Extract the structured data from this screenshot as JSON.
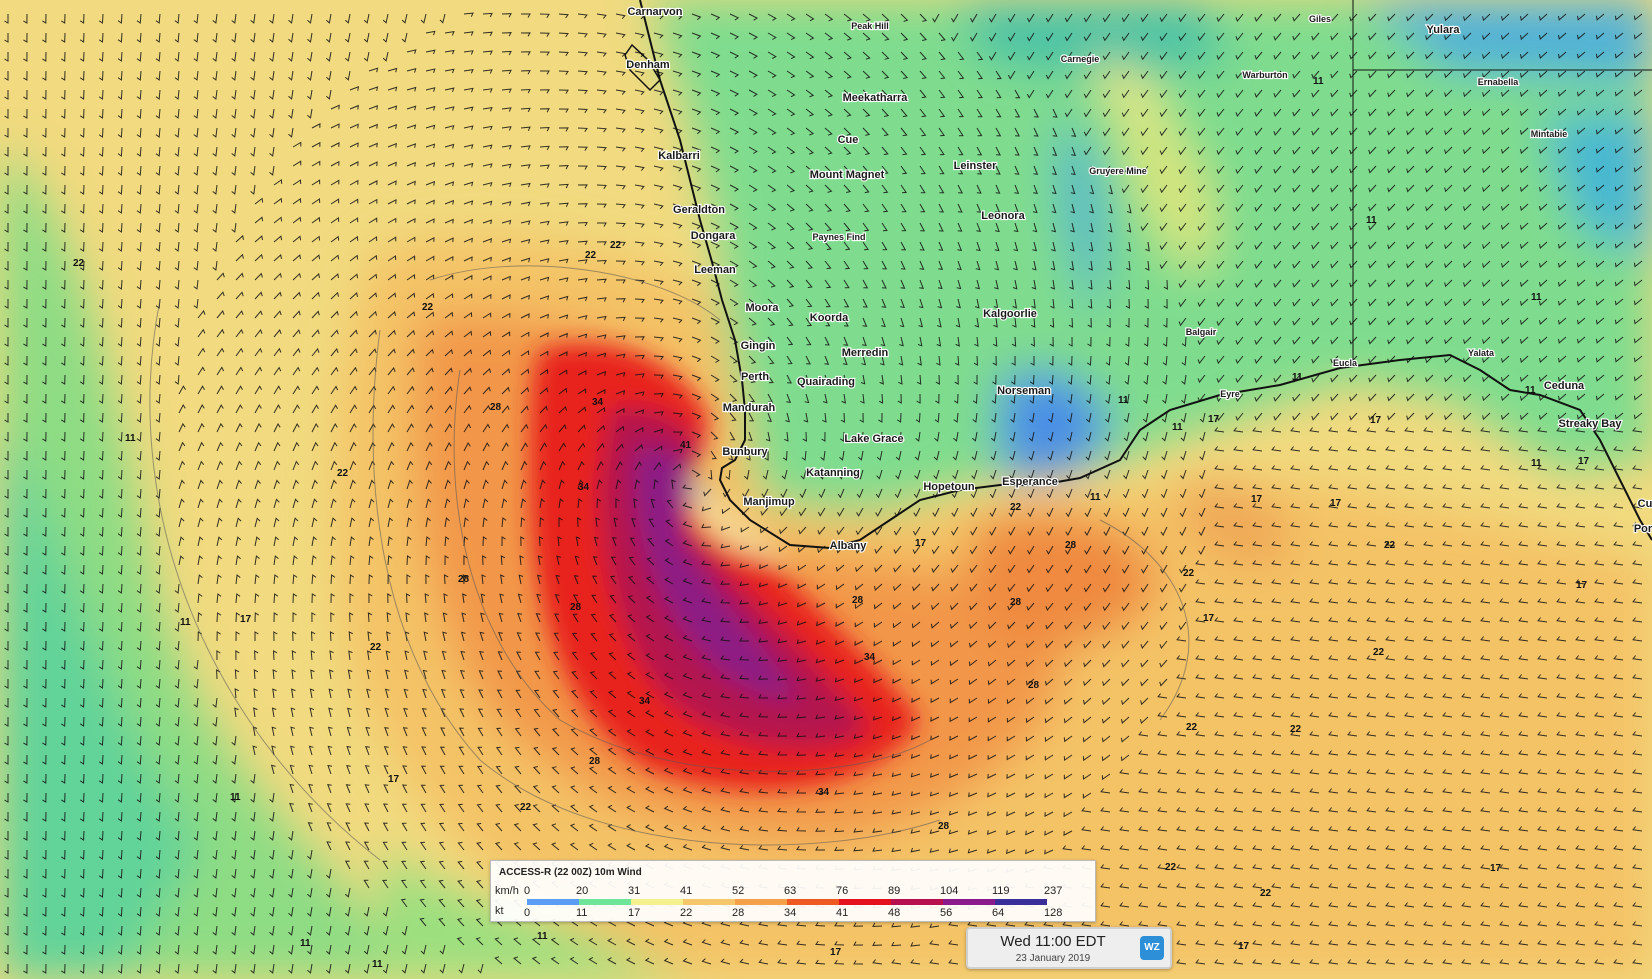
{
  "places": [
    {
      "id": "carnarvon",
      "name": "Carnarvon"
    },
    {
      "id": "denham",
      "name": "Denham"
    },
    {
      "id": "peak-hill",
      "name": "Peak Hill"
    },
    {
      "id": "giles",
      "name": "Giles"
    },
    {
      "id": "yulara",
      "name": "Yulara"
    },
    {
      "id": "carnegie",
      "name": "Carnegie"
    },
    {
      "id": "warburton",
      "name": "Warburton"
    },
    {
      "id": "ernabella",
      "name": "Ernabella"
    },
    {
      "id": "meekatharra",
      "name": "Meekatharra"
    },
    {
      "id": "mintabie",
      "name": "Mintabie"
    },
    {
      "id": "kalbarri",
      "name": "Kalbarri"
    },
    {
      "id": "cue",
      "name": "Cue"
    },
    {
      "id": "leinster",
      "name": "Leinster"
    },
    {
      "id": "gruyere-mine",
      "name": "Gruyere Mine"
    },
    {
      "id": "mount-magnet",
      "name": "Mount Magnet"
    },
    {
      "id": "geraldton",
      "name": "Geraldton"
    },
    {
      "id": "leonora",
      "name": "Leonora"
    },
    {
      "id": "dongara",
      "name": "Dongara"
    },
    {
      "id": "paynes-find",
      "name": "Paynes Find"
    },
    {
      "id": "leeman",
      "name": "Leeman"
    },
    {
      "id": "moora",
      "name": "Moora"
    },
    {
      "id": "koorda",
      "name": "Koorda"
    },
    {
      "id": "kalgoorlie",
      "name": "Kalgoorlie"
    },
    {
      "id": "balgair",
      "name": "Balgair"
    },
    {
      "id": "gingin",
      "name": "Gingin"
    },
    {
      "id": "merredin",
      "name": "Merredin"
    },
    {
      "id": "yalata",
      "name": "Yalata"
    },
    {
      "id": "eucla",
      "name": "Eucla"
    },
    {
      "id": "perth",
      "name": "Perth"
    },
    {
      "id": "quairading",
      "name": "Quairading"
    },
    {
      "id": "ceduna",
      "name": "Ceduna"
    },
    {
      "id": "norseman",
      "name": "Norseman"
    },
    {
      "id": "eyre",
      "name": "Eyre"
    },
    {
      "id": "mandurah",
      "name": "Mandurah"
    },
    {
      "id": "streaky-bay",
      "name": "Streaky Bay"
    },
    {
      "id": "lake-grace",
      "name": "Lake Grace"
    },
    {
      "id": "bunbury",
      "name": "Bunbury"
    },
    {
      "id": "katanning",
      "name": "Katanning"
    },
    {
      "id": "hopetoun",
      "name": "Hopetoun"
    },
    {
      "id": "esperance",
      "name": "Esperance"
    },
    {
      "id": "manjimup",
      "name": "Manjimup"
    },
    {
      "id": "albany",
      "name": "Albany"
    },
    {
      "id": "cu",
      "name": "Cu"
    },
    {
      "id": "por",
      "name": "Por"
    }
  ],
  "contour_labels": [
    "11",
    "17",
    "22",
    "28",
    "34",
    "41"
  ],
  "legend": {
    "title": "ACCESS-R (22 00Z) 10m Wind",
    "unit_kmh": "km/h",
    "unit_kt": "kt",
    "kmh_ticks": [
      "0",
      "20",
      "31",
      "41",
      "52",
      "63",
      "76",
      "89",
      "104",
      "119",
      "237"
    ],
    "kt_ticks": [
      "0",
      "11",
      "17",
      "22",
      "28",
      "34",
      "41",
      "48",
      "56",
      "64",
      "128"
    ],
    "colors": [
      "#5b9cf5",
      "#6fe59a",
      "#f4f08e",
      "#f6c76a",
      "#f5a14a",
      "#ef5a23",
      "#e5101d",
      "#b7104f",
      "#8a1b8c",
      "#3a2e9a"
    ]
  },
  "timestamp": {
    "time": "Wed 11:00 EDT",
    "date": "23 January 2019",
    "logo": "WZ"
  }
}
